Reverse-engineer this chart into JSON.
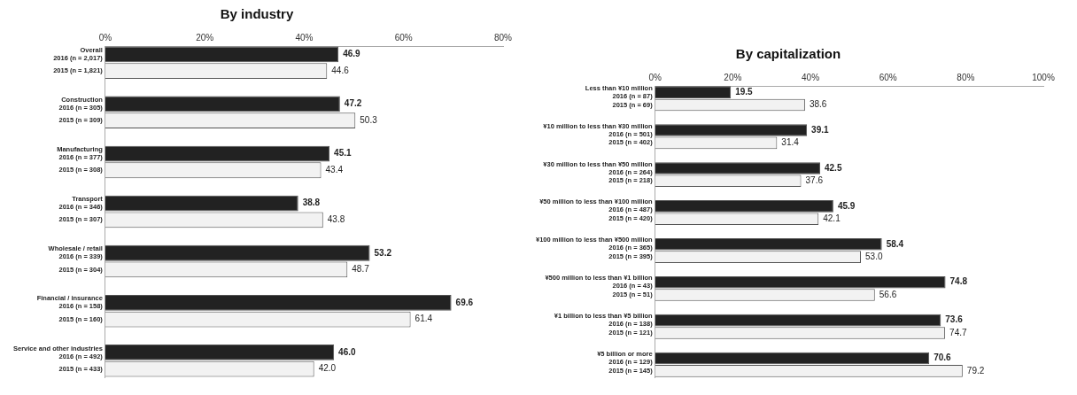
{
  "chart_data": [
    {
      "type": "bar",
      "title": "By industry",
      "orientation": "horizontal",
      "categories": [
        "Overall\n2016 (n = 2,017)",
        "2015 (n = 1,821)",
        null,
        "Construction\n2016 (n = 305)",
        "2015 (n = 309)",
        null,
        "Manufacturing\n2016 (n = 377)",
        "2015 (n = 308)",
        null,
        "Transport\n2016 (n = 346)",
        "2015 (n = 307)",
        null,
        "Wholesale / retail\n2016 (n = 339)",
        "2015 (n = 304)",
        null,
        "Financial / insurance\n2016 (n = 158)",
        "2015 (n = 160)",
        null,
        "Service and other industries\n2016 (n = 492)",
        "2015 (n = 433)"
      ],
      "values": [
        46.9,
        44.6,
        null,
        47.2,
        50.3,
        null,
        45.1,
        43.4,
        null,
        38.8,
        43.8,
        null,
        53.2,
        48.7,
        null,
        69.6,
        61.4,
        null,
        46.0,
        42.0
      ],
      "value_labels": [
        "46.9",
        "44.6",
        null,
        "47.2",
        "50.3",
        null,
        "45.1",
        "43.4",
        null,
        "38.8",
        "43.8",
        null,
        "53.2",
        "48.7",
        null,
        "69.6",
        "61.4",
        null,
        "46.0",
        "42.0"
      ],
      "colors": [
        "#222222",
        "#f2f2f2",
        null,
        "#222222",
        "#f2f2f2",
        null,
        "#222222",
        "#f2f2f2",
        null,
        "#222222",
        "#f2f2f2",
        null,
        "#222222",
        "#f2f2f2",
        null,
        "#222222",
        "#f2f2f2",
        null,
        "#222222",
        "#f2f2f2"
      ],
      "xlim": [
        0,
        80
      ],
      "xticks": [
        {
          "value": 0,
          "label": "0%"
        },
        {
          "value": 20,
          "label": "20%"
        },
        {
          "value": 40,
          "label": "40%"
        },
        {
          "value": 60,
          "label": "60%"
        },
        {
          "value": 80,
          "label": "80%"
        }
      ],
      "grid": false,
      "legend": false
    },
    {
      "type": "bar",
      "title": "By capitalization",
      "orientation": "horizontal",
      "categories": [
        "Less than ¥10 million\n2016 (n = 87)",
        "2015 (n = 69)",
        null,
        "¥10 million to less than ¥30 million\n2016 (n = 501)",
        "2015 (n = 402)",
        null,
        "¥30 million to less than ¥50 million\n2016 (n = 264)",
        "2015 (n = 218)",
        null,
        "¥50 million to less than ¥100 million\n2016 (n = 487)",
        "2015 (n = 420)",
        null,
        "¥100 million to less than ¥500 million\n2016 (n = 365)",
        "2015 (n = 395)",
        null,
        "¥500 million to less than ¥1 billion\n2016 (n = 43)",
        "2015 (n = 51)",
        null,
        "¥1 billion to less than ¥5 billion\n2016 (n = 138)",
        "2015 (n = 121)",
        null,
        "¥5 billion or more\n2016 (n = 129)",
        "2015 (n = 145)"
      ],
      "values": [
        19.5,
        38.6,
        null,
        39.1,
        31.4,
        null,
        42.5,
        37.6,
        null,
        45.9,
        42.1,
        null,
        58.4,
        53.0,
        null,
        74.8,
        56.6,
        null,
        73.6,
        74.7,
        null,
        70.6,
        79.2
      ],
      "value_labels": [
        "19.5",
        "38.6",
        null,
        "39.1",
        "31.4",
        null,
        "42.5",
        "37.6",
        null,
        "45.9",
        "42.1",
        null,
        "58.4",
        "53.0",
        null,
        "74.8",
        "56.6",
        null,
        "73.6",
        "74.7",
        null,
        "70.6",
        "79.2"
      ],
      "colors": [
        "#222222",
        "#f2f2f2",
        null,
        "#222222",
        "#f2f2f2",
        null,
        "#222222",
        "#f2f2f2",
        null,
        "#222222",
        "#f2f2f2",
        null,
        "#222222",
        "#f2f2f2",
        null,
        "#222222",
        "#f2f2f2",
        null,
        "#222222",
        "#f2f2f2",
        null,
        "#222222",
        "#f2f2f2"
      ],
      "xlim": [
        0,
        100
      ],
      "xticks": [
        {
          "value": 0,
          "label": "0%"
        },
        {
          "value": 20,
          "label": "20%"
        },
        {
          "value": 40,
          "label": "40%"
        },
        {
          "value": 60,
          "label": "60%"
        },
        {
          "value": 80,
          "label": "80%"
        },
        {
          "value": 100,
          "label": "100%"
        }
      ],
      "grid": false,
      "legend": false
    }
  ]
}
